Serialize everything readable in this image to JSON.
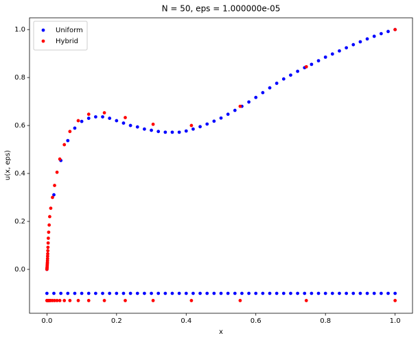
{
  "chart_data": {
    "type": "scatter",
    "title": "N = 50, eps = 1.000000e-05",
    "x_label": "x",
    "y_label": "u(x, eps)",
    "xlim": [
      -0.05,
      1.05
    ],
    "ylim": [
      -0.183,
      1.049
    ],
    "xticks": [
      {
        "value": 0,
        "label": "0.0"
      },
      {
        "value": 0.2,
        "label": "0.2"
      },
      {
        "value": 0.4,
        "label": "0.4"
      },
      {
        "value": 0.6,
        "label": "0.6"
      },
      {
        "value": 0.8,
        "label": "0.8"
      },
      {
        "value": 1,
        "label": "1.0"
      }
    ],
    "yticks": [
      {
        "value": 0,
        "label": "0.0"
      },
      {
        "value": 0.2,
        "label": "0.2"
      },
      {
        "value": 0.4,
        "label": "0.4"
      },
      {
        "value": 0.6,
        "label": "0.6"
      },
      {
        "value": 0.8,
        "label": "0.8"
      },
      {
        "value": 1,
        "label": "1.0"
      }
    ],
    "grid": false,
    "legend": "upper left",
    "series": [
      {
        "name": "Uniform",
        "color": "#0000ff",
        "x": [
          0,
          0.02,
          0.04,
          0.06,
          0.08,
          0.1,
          0.12,
          0.14,
          0.16,
          0.18,
          0.2,
          0.22,
          0.24,
          0.26,
          0.28,
          0.3,
          0.32,
          0.34,
          0.36,
          0.38,
          0.4,
          0.42,
          0.44,
          0.46,
          0.48,
          0.5,
          0.52,
          0.54,
          0.56,
          0.58,
          0.6,
          0.62,
          0.64,
          0.66,
          0.68,
          0.7,
          0.72,
          0.74,
          0.76,
          0.78,
          0.8,
          0.82,
          0.84,
          0.86,
          0.88,
          0.9,
          0.92,
          0.94,
          0.96,
          0.98,
          1,
          0,
          0.02,
          0.04,
          0.06,
          0.08,
          0.1,
          0.12,
          0.14,
          0.16,
          0.18,
          0.2,
          0.22,
          0.24,
          0.26,
          0.28,
          0.3,
          0.32,
          0.34,
          0.36,
          0.38,
          0.4,
          0.42,
          0.44,
          0.46,
          0.48,
          0.5,
          0.52,
          0.54,
          0.56,
          0.58,
          0.6,
          0.62,
          0.64,
          0.66,
          0.68,
          0.7,
          0.72,
          0.74,
          0.76,
          0.78,
          0.8,
          0.82,
          0.84,
          0.86,
          0.88,
          0.9,
          0.92,
          0.94,
          0.96,
          0.98,
          1
        ],
        "values": [
          0,
          0.311,
          0.454,
          0.537,
          0.589,
          0.617,
          0.63,
          0.636,
          0.636,
          0.63,
          0.62,
          0.61,
          0.6,
          0.594,
          0.585,
          0.58,
          0.575,
          0.572,
          0.572,
          0.572,
          0.577,
          0.585,
          0.595,
          0.606,
          0.618,
          0.631,
          0.647,
          0.663,
          0.68,
          0.698,
          0.717,
          0.737,
          0.757,
          0.776,
          0.794,
          0.81,
          0.826,
          0.841,
          0.855,
          0.87,
          0.885,
          0.898,
          0.911,
          0.924,
          0.937,
          0.949,
          0.961,
          0.972,
          0.983,
          0.992,
          1,
          -0.1,
          -0.1,
          -0.1,
          -0.1,
          -0.1,
          -0.1,
          -0.1,
          -0.1,
          -0.1,
          -0.1,
          -0.1,
          -0.1,
          -0.1,
          -0.1,
          -0.1,
          -0.1,
          -0.1,
          -0.1,
          -0.1,
          -0.1,
          -0.1,
          -0.1,
          -0.1,
          -0.1,
          -0.1,
          -0.1,
          -0.1,
          -0.1,
          -0.1,
          -0.1,
          -0.1,
          -0.1,
          -0.1,
          -0.1,
          -0.1,
          -0.1,
          -0.1,
          -0.1,
          -0.1,
          -0.1,
          -0.1,
          -0.1,
          -0.1,
          -0.1,
          -0.1,
          -0.1,
          -0.1,
          -0.1,
          -0.1,
          -0.1,
          -0.1
        ]
      },
      {
        "name": "Hybrid",
        "color": "#ff0000",
        "x": [
          0,
          0.0002,
          0.0004,
          0.0006,
          0.0008,
          0.001,
          0.0012,
          0.0014,
          0.0016,
          0.0018,
          0.002,
          0.0023,
          0.0026,
          0.003,
          0.0035,
          0.004,
          0.005,
          0.0065,
          0.008,
          0.011,
          0.016,
          0.022,
          0.029,
          0.037,
          0.05,
          0.066,
          0.09,
          0.12,
          0.165,
          0.225,
          0.305,
          0.415,
          0.555,
          0.745,
          1,
          0,
          0.0002,
          0.0004,
          0.0006,
          0.0008,
          0.001,
          0.0012,
          0.0014,
          0.0016,
          0.0018,
          0.002,
          0.0023,
          0.0026,
          0.003,
          0.0035,
          0.004,
          0.005,
          0.0065,
          0.008,
          0.011,
          0.016,
          0.022,
          0.029,
          0.037,
          0.05,
          0.066,
          0.09,
          0.12,
          0.165,
          0.225,
          0.305,
          0.415,
          0.555,
          0.745,
          1
        ],
        "values": [
          0,
          0.004,
          0.007,
          0.01,
          0.015,
          0.02,
          0.025,
          0.03,
          0.037,
          0.045,
          0.055,
          0.065,
          0.078,
          0.092,
          0.11,
          0.13,
          0.155,
          0.185,
          0.22,
          0.255,
          0.3,
          0.35,
          0.405,
          0.46,
          0.52,
          0.575,
          0.62,
          0.647,
          0.653,
          0.633,
          0.605,
          0.6,
          0.68,
          0.845,
          1,
          -0.13,
          -0.13,
          -0.13,
          -0.13,
          -0.13,
          -0.13,
          -0.13,
          -0.13,
          -0.13,
          -0.13,
          -0.13,
          -0.13,
          -0.13,
          -0.13,
          -0.13,
          -0.13,
          -0.13,
          -0.13,
          -0.13,
          -0.13,
          -0.13,
          -0.13,
          -0.13,
          -0.13,
          -0.13,
          -0.13,
          -0.13,
          -0.13,
          -0.13,
          -0.13,
          -0.13,
          -0.13,
          -0.13,
          -0.13,
          -0.13
        ]
      }
    ]
  }
}
